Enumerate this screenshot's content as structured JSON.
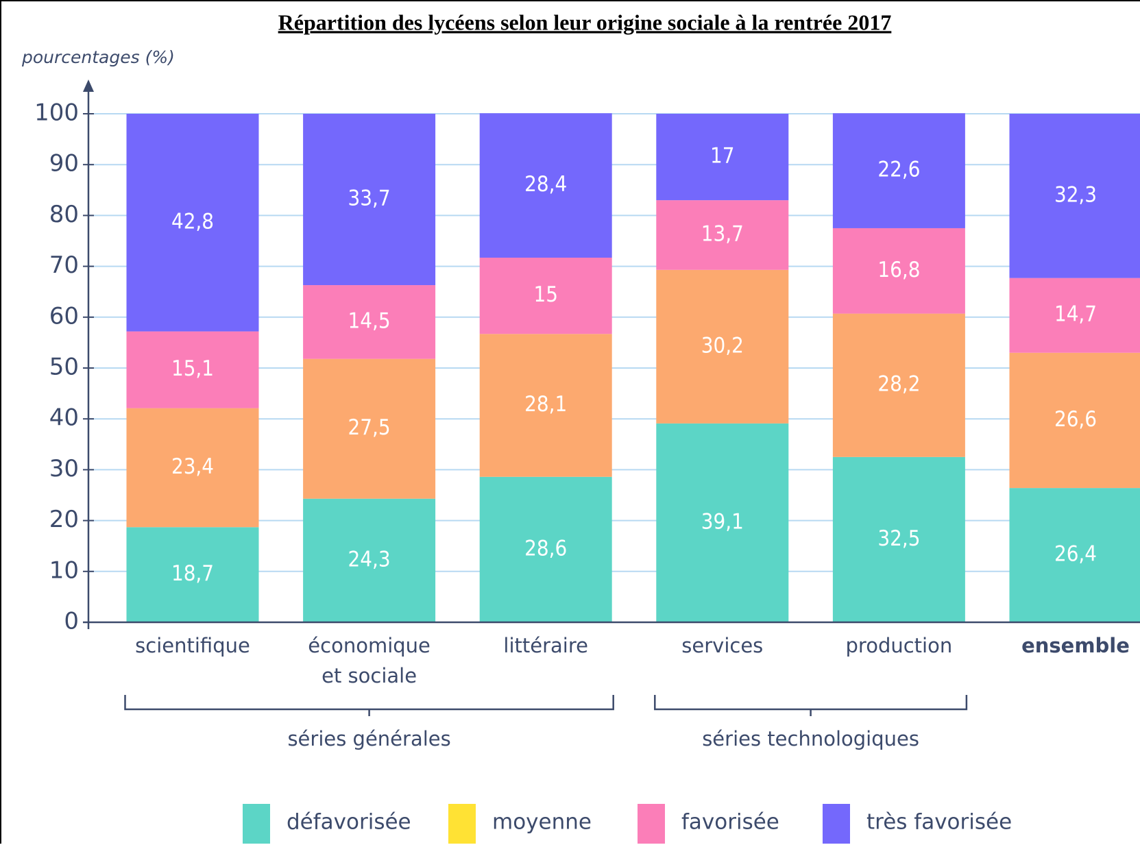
{
  "chart_data": {
    "type": "stacked_bar",
    "title": "Répartition des lycéens selon leur origine sociale à la rentrée 2017",
    "y_label": "pourcentages (%)",
    "categories": [
      "scientifique",
      "économique et sociale",
      "littéraire",
      "services",
      "production",
      "ensemble"
    ],
    "series": [
      {
        "name": "défavorisée",
        "color": "#5cd5c6",
        "legend_color": "#5cd5c6",
        "values": [
          18.7,
          24.3,
          28.6,
          39.1,
          32.5,
          26.4
        ],
        "value_labels": [
          "18,7",
          "24,3",
          "28,6",
          "39,1",
          "32,5",
          "26,4"
        ]
      },
      {
        "name": "moyenne",
        "color": "#fca96f",
        "legend_color": "#ffe234",
        "values": [
          23.4,
          27.5,
          28.1,
          30.2,
          28.2,
          26.6
        ],
        "value_labels": [
          "23,4",
          "27,5",
          "28,1",
          "30,2",
          "28,2",
          "26,6"
        ]
      },
      {
        "name": "favorisée",
        "color": "#fb7eb8",
        "legend_color": "#fb7eb8",
        "values": [
          15.1,
          14.5,
          15,
          13.7,
          16.8,
          14.7
        ],
        "value_labels": [
          "15,1",
          "14,5",
          "15",
          "13,7",
          "16,8",
          "14,7"
        ]
      },
      {
        "name": "très favorisée",
        "color": "#7468fc",
        "legend_color": "#7468fc",
        "values": [
          42.8,
          33.7,
          28.4,
          17,
          22.6,
          32.3
        ],
        "value_labels": [
          "42,8",
          "33,7",
          "28,4",
          "17",
          "22,6",
          "32,3"
        ]
      }
    ],
    "groups": [
      {
        "label": "séries générales",
        "start": 0,
        "end": 2
      },
      {
        "label": "séries technologiques",
        "start": 3,
        "end": 4
      }
    ],
    "ylim": [
      0,
      100
    ],
    "yticks": [
      0,
      10,
      20,
      30,
      40,
      50,
      60,
      70,
      80,
      90,
      100
    ],
    "grid": true,
    "legend": "bottom"
  }
}
